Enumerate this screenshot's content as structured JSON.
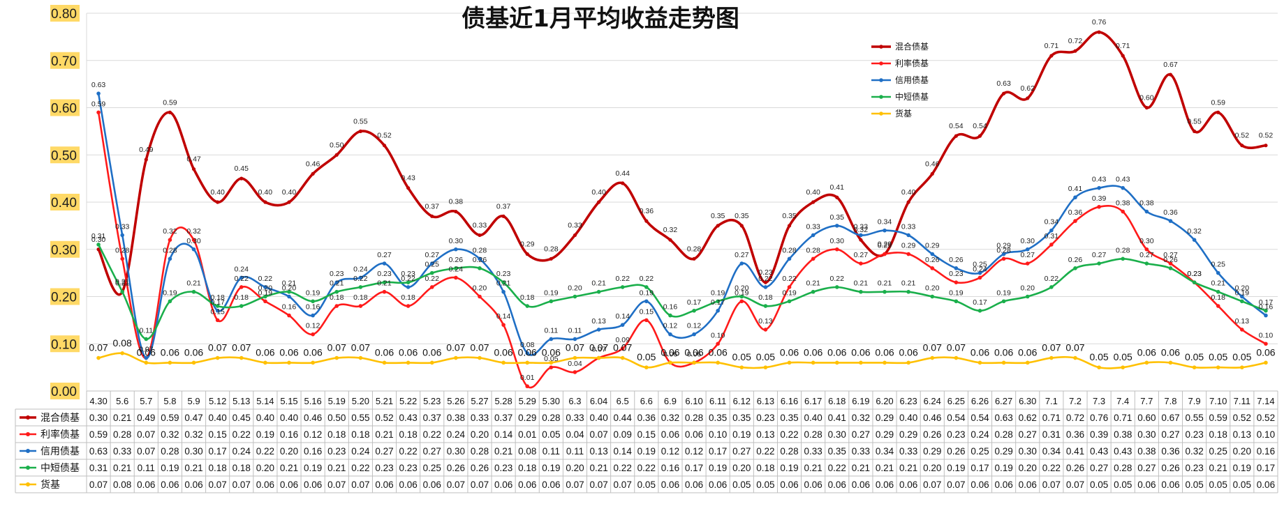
{
  "chart_data": {
    "type": "line",
    "title": "债基近1月平均收益走势图",
    "ylim": [
      0,
      0.8
    ],
    "yticks": [
      "0.00",
      "0.10",
      "0.20",
      "0.30",
      "0.40",
      "0.50",
      "0.60",
      "0.70",
      "0.80"
    ],
    "legend_position": "top-right",
    "grid": true,
    "categories": [
      "4.30",
      "5.6",
      "5.7",
      "5.8",
      "5.9",
      "5.12",
      "5.13",
      "5.14",
      "5.15",
      "5.16",
      "5.19",
      "5.20",
      "5.21",
      "5.22",
      "5.23",
      "5.26",
      "5.27",
      "5.28",
      "5.29",
      "5.30",
      "6.3",
      "6.04",
      "6.5",
      "6.6",
      "6.9",
      "6.10",
      "6.11",
      "6.12",
      "6.13",
      "6.16",
      "6.17",
      "6.18",
      "6.19",
      "6.20",
      "6.23",
      "6.24",
      "6.25",
      "6.26",
      "6.27",
      "6.30",
      "7.1",
      "7.2",
      "7.3",
      "7.4",
      "7.7",
      "7.8",
      "7.9",
      "7.10",
      "7.11",
      "7.14"
    ],
    "series": [
      {
        "name": "混合债基",
        "color": "#c00000",
        "values": [
          "0.30",
          "0.21",
          "0.49",
          "0.59",
          "0.47",
          "0.40",
          "0.45",
          "0.40",
          "0.40",
          "0.46",
          "0.50",
          "0.55",
          "0.52",
          "0.43",
          "0.37",
          "0.38",
          "0.33",
          "0.37",
          "0.29",
          "0.28",
          "0.33",
          "0.40",
          "0.44",
          "0.36",
          "0.32",
          "0.28",
          "0.35",
          "0.35",
          "0.23",
          "0.35",
          "0.40",
          "0.41",
          "0.32",
          "0.29",
          "0.40",
          "0.46",
          "0.54",
          "0.54",
          "0.63",
          "0.62",
          "0.71",
          "0.72",
          "0.76",
          "0.71",
          "0.60",
          "0.67",
          "0.55",
          "0.59",
          "0.52",
          "0.52"
        ]
      },
      {
        "name": "利率债基",
        "color": "#ff1a1a",
        "values": [
          "0.59",
          "0.28",
          "0.07",
          "0.32",
          "0.32",
          "0.15",
          "0.22",
          "0.19",
          "0.16",
          "0.12",
          "0.18",
          "0.18",
          "0.21",
          "0.18",
          "0.22",
          "0.24",
          "0.20",
          "0.14",
          "0.01",
          "0.05",
          "0.04",
          "0.07",
          "0.09",
          "0.15",
          "0.06",
          "0.06",
          "0.10",
          "0.19",
          "0.13",
          "0.22",
          "0.28",
          "0.30",
          "0.27",
          "0.29",
          "0.29",
          "0.26",
          "0.23",
          "0.24",
          "0.28",
          "0.27",
          "0.31",
          "0.36",
          "0.39",
          "0.38",
          "0.30",
          "0.27",
          "0.23",
          "0.18",
          "0.13",
          "0.10"
        ]
      },
      {
        "name": "信用债基",
        "color": "#1f6fc5",
        "values": [
          "0.63",
          "0.33",
          "0.07",
          "0.28",
          "0.30",
          "0.17",
          "0.24",
          "0.22",
          "0.20",
          "0.16",
          "0.23",
          "0.24",
          "0.27",
          "0.22",
          "0.27",
          "0.30",
          "0.28",
          "0.21",
          "0.08",
          "0.11",
          "0.11",
          "0.13",
          "0.14",
          "0.19",
          "0.12",
          "0.12",
          "0.17",
          "0.27",
          "0.22",
          "0.28",
          "0.33",
          "0.35",
          "0.33",
          "0.34",
          "0.33",
          "0.29",
          "0.26",
          "0.25",
          "0.29",
          "0.30",
          "0.34",
          "0.41",
          "0.43",
          "0.43",
          "0.38",
          "0.36",
          "0.32",
          "0.25",
          "0.20",
          "0.16"
        ]
      },
      {
        "name": "中短债基",
        "color": "#1aaf4b",
        "values": [
          "0.31",
          "0.21",
          "0.11",
          "0.19",
          "0.21",
          "0.18",
          "0.18",
          "0.20",
          "0.21",
          "0.19",
          "0.21",
          "0.22",
          "0.23",
          "0.23",
          "0.25",
          "0.26",
          "0.26",
          "0.23",
          "0.18",
          "0.19",
          "0.20",
          "0.21",
          "0.22",
          "0.22",
          "0.16",
          "0.17",
          "0.19",
          "0.20",
          "0.18",
          "0.19",
          "0.21",
          "0.22",
          "0.21",
          "0.21",
          "0.21",
          "0.20",
          "0.19",
          "0.17",
          "0.19",
          "0.20",
          "0.22",
          "0.26",
          "0.27",
          "0.28",
          "0.27",
          "0.26",
          "0.23",
          "0.21",
          "0.19",
          "0.17"
        ]
      },
      {
        "name": "货基",
        "color": "#ffc000",
        "values": [
          "0.07",
          "0.08",
          "0.06",
          "0.06",
          "0.06",
          "0.07",
          "0.07",
          "0.06",
          "0.06",
          "0.06",
          "0.07",
          "0.07",
          "0.06",
          "0.06",
          "0.06",
          "0.07",
          "0.07",
          "0.06",
          "0.06",
          "0.06",
          "0.07",
          "0.07",
          "0.07",
          "0.05",
          "0.06",
          "0.06",
          "0.06",
          "0.05",
          "0.05",
          "0.06",
          "0.06",
          "0.06",
          "0.06",
          "0.06",
          "0.06",
          "0.07",
          "0.07",
          "0.06",
          "0.06",
          "0.06",
          "0.07",
          "0.07",
          "0.05",
          "0.05",
          "0.06",
          "0.06",
          "0.05",
          "0.05",
          "0.05",
          "0.06"
        ]
      }
    ]
  }
}
